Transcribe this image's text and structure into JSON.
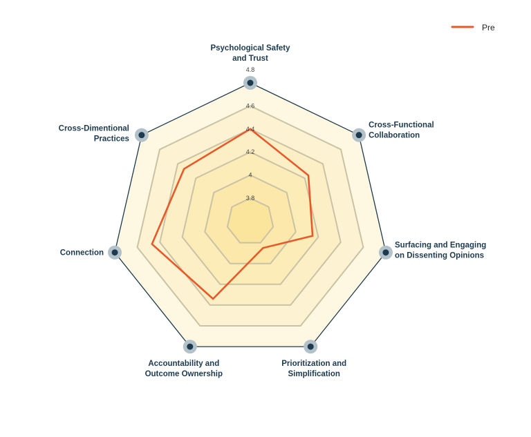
{
  "chart_data": {
    "type": "radar",
    "title": "",
    "axes": [
      [
        "Psychological Safety",
        "and Trust"
      ],
      [
        "Cross-Functional",
        "Collaboration"
      ],
      [
        "Surfacing and Engaging",
        "on Dissenting Opinions"
      ],
      [
        "Prioritization and",
        "Simplification"
      ],
      [
        "Accountability and",
        "Outcome Ownership"
      ],
      [
        "Connection"
      ],
      [
        "Cross-Dimentional",
        "Practices"
      ]
    ],
    "radial_range": [
      3.8,
      4.8
    ],
    "ticks": [
      "3.8",
      "4",
      "4.2",
      "4.4",
      "4.6",
      "4.8"
    ],
    "tick_values": [
      3.8,
      4.0,
      4.2,
      4.4,
      4.6,
      4.8
    ],
    "series": [
      {
        "name": "Pre",
        "values": [
          4.4,
          4.24,
          4.15,
          3.85,
          4.34,
          4.47,
          4.33
        ]
      }
    ],
    "legend_position": "top-right",
    "colors": {
      "series": "#e8592a",
      "outline": "#1d3a4f",
      "marker": "#1d3a4f",
      "marker_halo": "#b3c1c9",
      "grid_line": "#c9c2a4",
      "band_outer": "#fef7e1",
      "band_inner": "#fbe49c"
    }
  }
}
